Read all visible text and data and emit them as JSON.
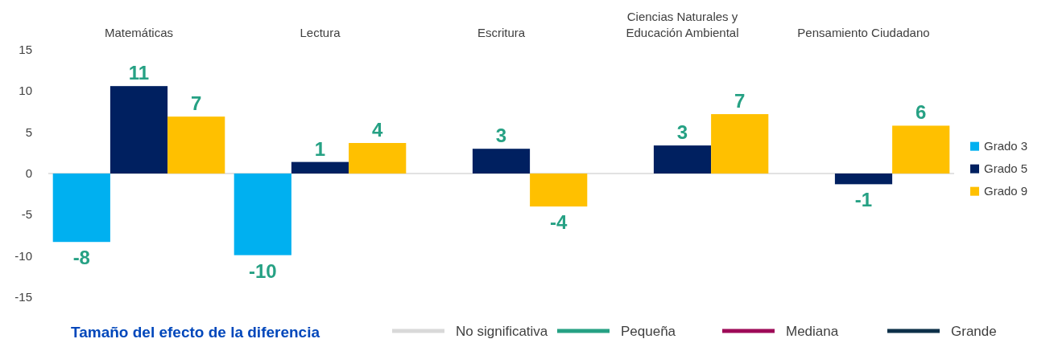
{
  "chart_data": {
    "type": "bar",
    "categories": [
      "Matemáticas",
      "Lectura",
      "Escritura",
      "Ciencias Naturales y Educación Ambiental",
      "Pensamiento Ciudadano"
    ],
    "series": [
      {
        "name": "Grado 3",
        "color": "#00b0f0",
        "values": [
          -8.3,
          -9.9,
          null,
          null,
          null
        ],
        "value_labels": [
          "-8",
          "-10",
          null,
          null,
          null
        ]
      },
      {
        "name": "Grado 5",
        "color": "#002060",
        "values": [
          10.6,
          1.4,
          3.0,
          3.4,
          -1.3
        ],
        "value_labels": [
          "11",
          "1",
          "3",
          "3",
          "-1"
        ]
      },
      {
        "name": "Grado 9",
        "color": "#ffc000",
        "values": [
          6.9,
          3.7,
          -4.0,
          7.2,
          5.8
        ],
        "value_labels": [
          "7",
          "4",
          "-4",
          "7",
          "6"
        ]
      },
      {
        "type": "line",
        "name": "No significativa",
        "color": "#d9d9d9",
        "values": [
          null,
          null,
          null,
          null,
          null
        ]
      },
      {
        "type": "line",
        "name": "Pequeña",
        "color": "#26a184",
        "values": [
          null,
          null,
          null,
          null,
          null
        ]
      },
      {
        "type": "line",
        "name": "Mediana",
        "color": "#9e0a58",
        "values": [
          null,
          null,
          null,
          null,
          null
        ]
      },
      {
        "type": "line",
        "name": "Grande",
        "color": "#0d3049",
        "values": [
          null,
          null,
          null,
          null,
          null
        ]
      }
    ],
    "legend_title": "Tamaño del efecto de la diferencia",
    "ylim": [
      -15,
      15
    ],
    "yticks": [
      -15,
      -10,
      -5,
      0,
      5,
      10,
      15
    ],
    "legend": "right"
  }
}
